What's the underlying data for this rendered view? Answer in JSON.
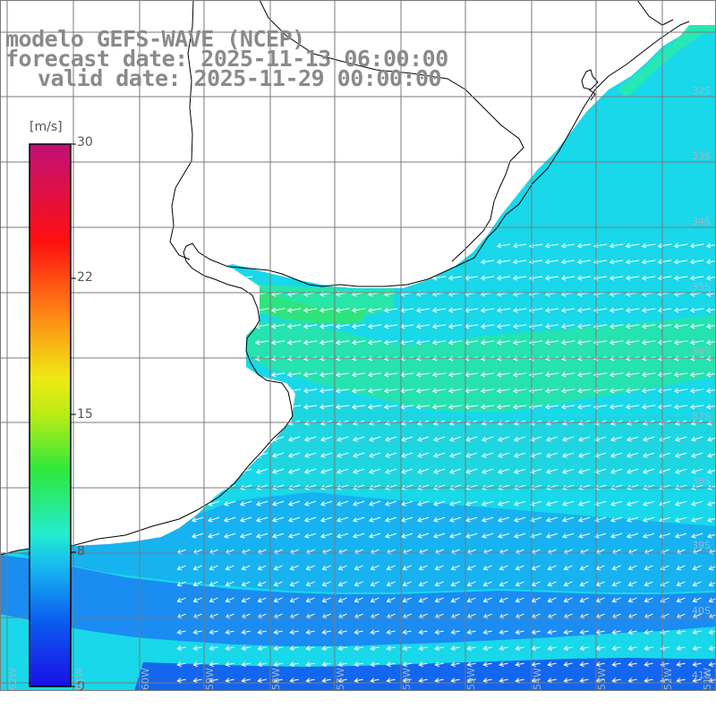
{
  "title": {
    "line1": "modelo GEFS-WAVE (NCEP)",
    "line2": "forecast date: 2025-11-13 06:00:00",
    "line3": "valid date: 2025-11-29 00:00:00"
  },
  "colorbar": {
    "unit": "[m/s]",
    "ticks": [
      "30",
      "22",
      "15",
      "8",
      "0"
    ],
    "min": 0,
    "max": 30,
    "colors": [
      "#1a10e6",
      "#0a5cf0",
      "#16b8f0",
      "#22ecd0",
      "#2ee83a",
      "#dde81a",
      "#ff7a14",
      "#ff1010",
      "#c01078"
    ]
  },
  "map": {
    "lat_labels": [
      "32S",
      "33S",
      "34S",
      "35S",
      "36S",
      "37S",
      "38S",
      "39S",
      "40S",
      "41S"
    ],
    "lon_labels": [
      "62W",
      "61W",
      "60W",
      "59W",
      "58W",
      "57W",
      "56W",
      "55W",
      "54W",
      "53W",
      "52W",
      "51W"
    ],
    "land_color": "#ffffff",
    "ocean_colors": [
      "#1160f0",
      "#1aa0f4",
      "#1fe0e8",
      "#2ee87a"
    ]
  }
}
